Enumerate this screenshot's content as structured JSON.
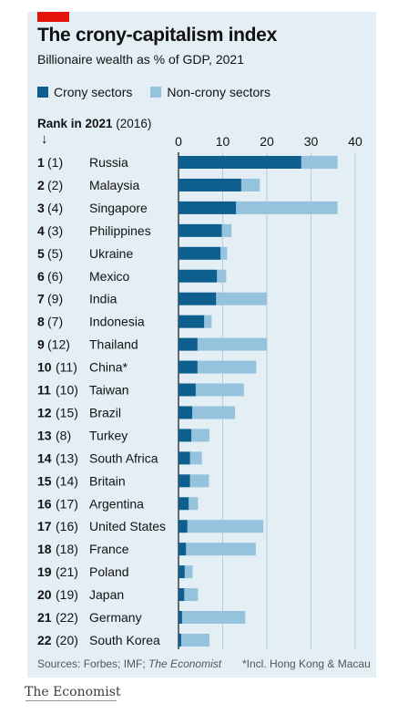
{
  "header": {
    "title": "The crony-capitalism index",
    "subtitle": "Billionaire wealth as % of GDP, 2021"
  },
  "legend": {
    "crony_label": "Crony sectors",
    "noncrony_label": "Non-crony sectors"
  },
  "rank_header": {
    "bold": "Rank in 2021",
    "rest": " (2016)",
    "arrow": "↓"
  },
  "colors": {
    "crony": "#0e5e8e",
    "noncrony": "#95c2dc",
    "panel": "#e3eef5",
    "accent_red": "#e3120b"
  },
  "chart_data": {
    "type": "bar",
    "orientation": "horizontal",
    "stacked": true,
    "title": "The crony-capitalism index",
    "subtitle": "Billionaire wealth as % of GDP, 2021",
    "xlim": [
      0,
      40
    ],
    "xticks": [
      0,
      10,
      20,
      30,
      40
    ],
    "grid": true,
    "legend_position": "top",
    "categories": [
      "Russia",
      "Malaysia",
      "Singapore",
      "Philippines",
      "Ukraine",
      "Mexico",
      "India",
      "Indonesia",
      "Thailand",
      "China*",
      "Taiwan",
      "Brazil",
      "Turkey",
      "South Africa",
      "Britain",
      "Argentina",
      "United States",
      "France",
      "Poland",
      "Japan",
      "Germany",
      "South Korea"
    ],
    "rank_2021": [
      "1",
      "2",
      "3",
      "4",
      "5",
      "6",
      "7",
      "8",
      "9",
      "10",
      "11",
      "12",
      "13",
      "14",
      "15",
      "16",
      "17",
      "18",
      "19",
      "20",
      "21",
      "22"
    ],
    "rank_2016": [
      "(1)",
      "(2)",
      "(4)",
      "(3)",
      "(5)",
      "(6)",
      "(9)",
      "(7)",
      "(12)",
      "(11)",
      "(10)",
      "(15)",
      "(8)",
      "(13)",
      "(14)",
      "(17)",
      "(16)",
      "(18)",
      "(21)",
      "(19)",
      "(22)",
      "(20)"
    ],
    "series": [
      {
        "name": "Crony sectors",
        "values": [
          27.8,
          14.2,
          13.0,
          9.8,
          9.5,
          8.7,
          8.5,
          5.8,
          4.3,
          4.3,
          3.9,
          3.1,
          2.9,
          2.6,
          2.6,
          2.3,
          2.0,
          1.7,
          1.4,
          1.3,
          0.8,
          0.6
        ]
      },
      {
        "name": "Non-crony sectors",
        "values": [
          8.2,
          4.2,
          23.0,
          2.2,
          1.5,
          2.1,
          11.5,
          1.7,
          15.7,
          13.3,
          10.9,
          9.7,
          4.1,
          2.7,
          4.3,
          2.1,
          17.2,
          15.8,
          1.8,
          3.1,
          14.3,
          6.4
        ]
      }
    ]
  },
  "footer": {
    "sources_prefix": "Sources: Forbes; IMF; ",
    "sources_italic": "The Economist",
    "note": "*Incl. Hong Kong & Macau",
    "brand": "The Economist"
  }
}
